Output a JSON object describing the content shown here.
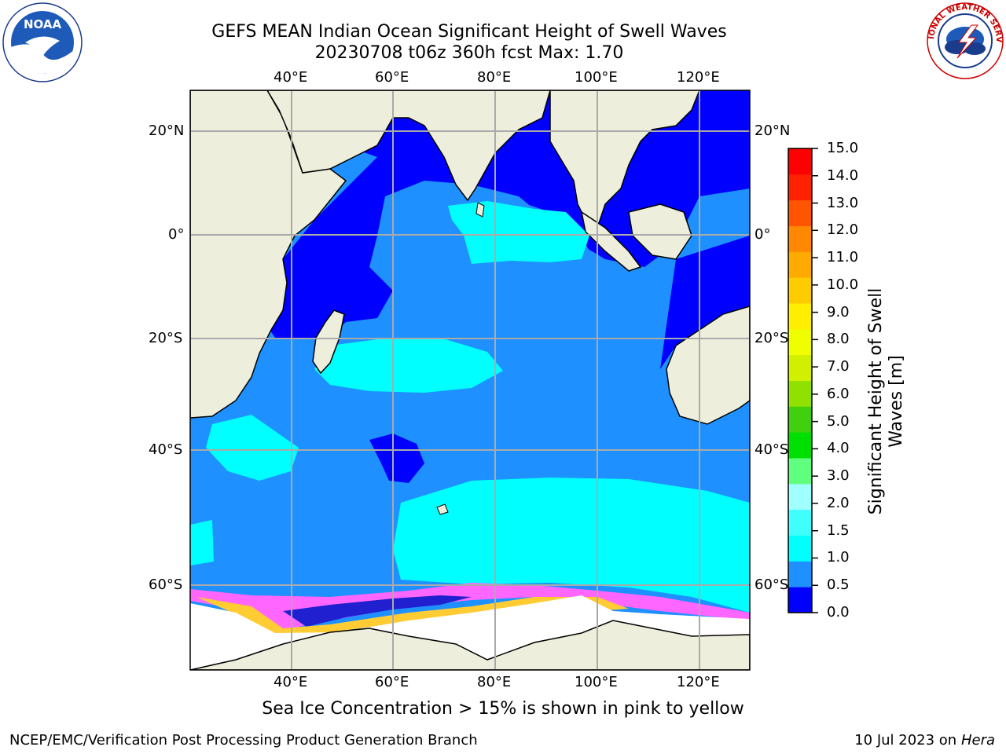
{
  "title_line1": "GEFS MEAN Indian Ocean Significant Height of Swell Waves",
  "title_line2": "20230708 t06z 360h fcst   Max: 1.70",
  "top_lon_labels": [
    "40°E",
    "60°E",
    "80°E",
    "100°E",
    "120°E"
  ],
  "bottom_lon_labels": [
    "40°E",
    "60°E",
    "80°E",
    "100°E",
    "120°E"
  ],
  "lat_labels": [
    "20°N",
    "0°",
    "20°S",
    "40°S",
    "60°S"
  ],
  "colorbar": {
    "label_line1": "Significant Height of Swell",
    "label_line2": "Waves [m]",
    "ticks": [
      "0.0",
      "0.5",
      "1.0",
      "1.5",
      "2.0",
      "3.0",
      "4.0",
      "5.0",
      "6.0",
      "7.0",
      "8.0",
      "9.0",
      "10.0",
      "11.0",
      "12.0",
      "13.0",
      "14.0",
      "15.0"
    ],
    "colors": [
      "#0000ff",
      "#1e90ff",
      "#00ffff",
      "#40ffff",
      "#a0ffff",
      "#60ff80",
      "#00e000",
      "#40d010",
      "#90e000",
      "#d0f000",
      "#f0ff00",
      "#ffee00",
      "#ffcc00",
      "#ffaa00",
      "#ff8800",
      "#ff5500",
      "#ff2200",
      "#ff0000"
    ]
  },
  "subtitle": "Sea Ice Concentration > 15% is shown in pink to yellow",
  "footer_left": "NCEP/EMC/Verification Post Processing Product Generation Branch",
  "footer_right_date": "10 Jul 2023 on",
  "footer_right_host": "Hera",
  "logos": {
    "left": "noaa-logo",
    "left_text": "NOAA",
    "right": "national-weather-service-logo",
    "right_text": "NATIONAL WEATHER SERVICE"
  },
  "colors": {
    "land": "#eeeedc",
    "ocean_low": "#0000ff",
    "ocean_mid": "#1e90ff",
    "ocean_high": "#00ffff",
    "ice_pink": "#ff66ff",
    "ice_yellow": "#ffcc33"
  }
}
